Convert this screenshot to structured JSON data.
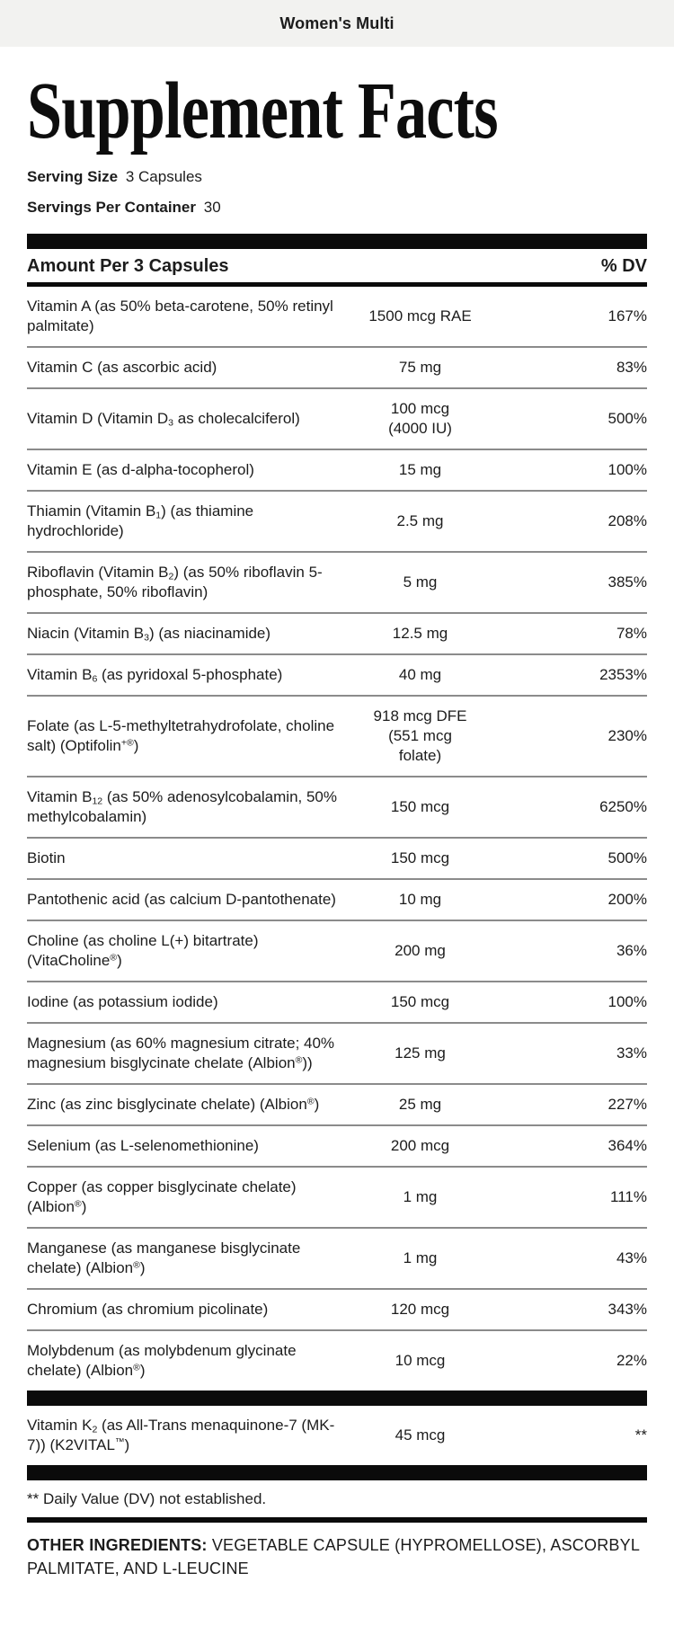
{
  "banner": {
    "title": "Women's Multi"
  },
  "header": {
    "title": "Supplement Facts",
    "serving_size": {
      "label": "Serving Size",
      "value": "3 Capsules"
    },
    "servings_per_container": {
      "label": "Servings Per Container",
      "value": "30"
    }
  },
  "table": {
    "header": {
      "amount": "Amount Per 3 Capsules",
      "dv": "% DV"
    },
    "rows": [
      {
        "name": "Vitamin A (as 50% beta-carotene, 50% retinyl palmitate)",
        "amount": "1500 mcg RAE",
        "dv": "167%"
      },
      {
        "name": "Vitamin C (as ascorbic acid)",
        "amount": "75 mg",
        "dv": "83%"
      },
      {
        "name": "Vitamin D (Vitamin D₃ as cholecalciferol)",
        "amount": "100 mcg\n(4000 IU)",
        "dv": "500%"
      },
      {
        "name": "Vitamin E (as d-alpha-tocopherol)",
        "amount": "15 mg",
        "dv": "100%"
      },
      {
        "name": "Thiamin (Vitamin B₁) (as thiamine hydrochloride)",
        "amount": "2.5 mg",
        "dv": "208%"
      },
      {
        "name": "Riboflavin (Vitamin B₂) (as 50% riboflavin 5-phosphate, 50% riboflavin)",
        "amount": "5 mg",
        "dv": "385%"
      },
      {
        "name": "Niacin (Vitamin B₃) (as niacinamide)",
        "amount": "12.5 mg",
        "dv": "78%"
      },
      {
        "name": "Vitamin B₆ (as pyridoxal 5-phosphate)",
        "amount": "40 mg",
        "dv": "2353%"
      },
      {
        "name": "Folate (as L-5-methyltetrahydrofolate, choline salt) (Optifolin⁺®)",
        "amount": "918 mcg DFE\n(551 mcg\nfolate)",
        "dv": "230%"
      },
      {
        "name": "Vitamin B₁₂ (as 50% adenosylcobalamin, 50% methylcobalamin)",
        "amount": "150 mcg",
        "dv": "6250%"
      },
      {
        "name": "Biotin",
        "amount": "150 mcg",
        "dv": "500%"
      },
      {
        "name": "Pantothenic acid (as calcium D-pantothenate)",
        "amount": "10 mg",
        "dv": "200%"
      },
      {
        "name": "Choline (as choline L(+) bitartrate) (VitaCholine®)",
        "amount": "200 mg",
        "dv": "36%"
      },
      {
        "name": "Iodine (as potassium iodide)",
        "amount": "150 mcg",
        "dv": "100%"
      },
      {
        "name": "Magnesium (as 60% magnesium citrate; 40% magnesium bisglycinate chelate (Albion®))",
        "amount": "125 mg",
        "dv": "33%"
      },
      {
        "name": "Zinc (as zinc bisglycinate chelate) (Albion®)",
        "amount": "25 mg",
        "dv": "227%"
      },
      {
        "name": "Selenium (as L-selenomethionine)",
        "amount": "200 mcg",
        "dv": "364%"
      },
      {
        "name": "Copper (as copper bisglycinate chelate) (Albion®)",
        "amount": "1 mg",
        "dv": "111%"
      },
      {
        "name": "Manganese (as manganese bisglycinate chelate) (Albion®)",
        "amount": "1 mg",
        "dv": "43%"
      },
      {
        "name": "Chromium (as chromium picolinate)",
        "amount": "120 mcg",
        "dv": "343%"
      },
      {
        "name": "Molybdenum (as molybdenum glycinate chelate) (Albion®)",
        "amount": "10 mcg",
        "dv": "22%"
      }
    ],
    "special_row": {
      "name": "Vitamin K₂ (as All-Trans menaquinone-7 (MK-7)) (K2VITAL™)",
      "amount": "45 mcg",
      "dv": "**"
    },
    "footnote": "** Daily Value (DV) not established."
  },
  "other_ingredients": {
    "label": "OTHER INGREDIENTS:",
    "text": "VEGETABLE CAPSULE (HYPROMELLOSE), ASCORBYL PALMITATE, AND L-LEUCINE"
  },
  "colors": {
    "topbar_bg": "#f2f2f0",
    "text": "#1c1c1c",
    "bar_black": "#0b0b0b",
    "row_separator": "#8b8b8b"
  }
}
